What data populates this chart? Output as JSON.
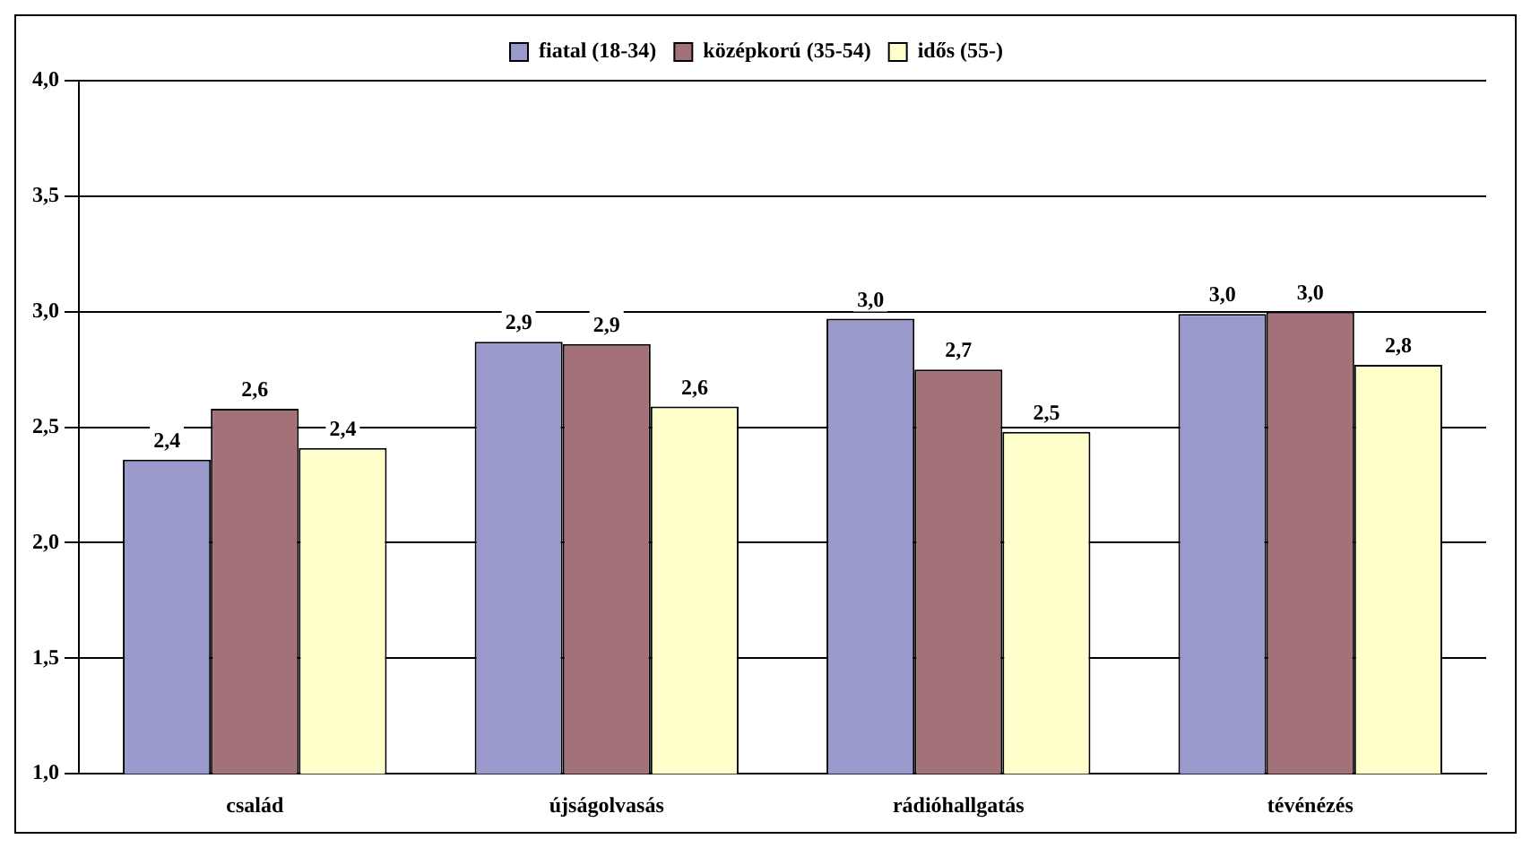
{
  "chart_data": {
    "type": "bar",
    "categories": [
      "család",
      "újságolvasás",
      "rádióhallgatás",
      "tévénézés"
    ],
    "series": [
      {
        "name": "fiatal (18-34)",
        "color": "#9999cc",
        "values": [
          2.36,
          2.87,
          2.97,
          2.99
        ],
        "value_labels": [
          "2,4",
          "2,9",
          "3,0",
          "3,0"
        ]
      },
      {
        "name": "középkorú (35-54)",
        "color": "#a37278",
        "values": [
          2.58,
          2.86,
          2.75,
          3.0
        ],
        "value_labels": [
          "2,6",
          "2,9",
          "2,7",
          "3,0"
        ]
      },
      {
        "name": "idős (55-)",
        "color": "#ffffcc",
        "values": [
          2.41,
          2.59,
          2.48,
          2.77
        ],
        "value_labels": [
          "2,4",
          "2,6",
          "2,5",
          "2,8"
        ]
      }
    ],
    "ylim": [
      1,
      4
    ],
    "yticks": [
      {
        "value": 1,
        "label": "1,0"
      },
      {
        "value": 1.5,
        "label": "1,5"
      },
      {
        "value": 2,
        "label": "2,0"
      },
      {
        "value": 2.5,
        "label": "2,5"
      },
      {
        "value": 3,
        "label": "3,0"
      },
      {
        "value": 3.5,
        "label": "3,5"
      },
      {
        "value": 4,
        "label": "4,0"
      }
    ],
    "grid": "y",
    "legend": "top"
  }
}
